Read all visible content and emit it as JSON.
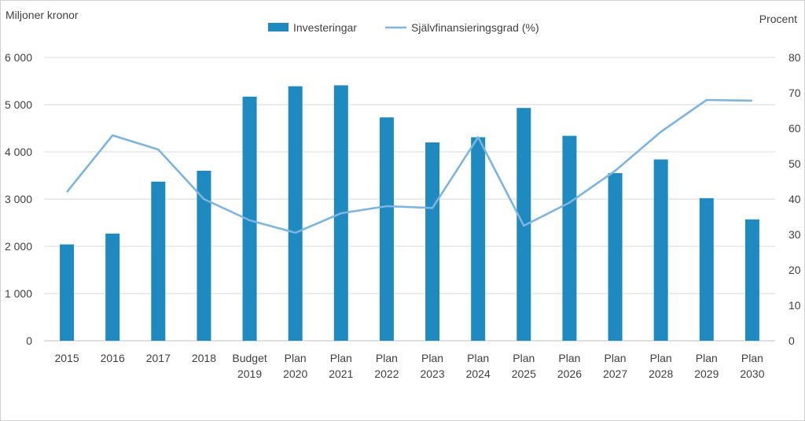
{
  "chart_data": {
    "type": "bar",
    "left_axis_title": "Miljoner kronor",
    "right_axis_title": "Procent",
    "categories": [
      [
        "2015"
      ],
      [
        "2016"
      ],
      [
        "2017"
      ],
      [
        "2018"
      ],
      [
        "Budget",
        "2019"
      ],
      [
        "Plan",
        "2020"
      ],
      [
        "Plan",
        "2021"
      ],
      [
        "Plan",
        "2022"
      ],
      [
        "Plan",
        "2023"
      ],
      [
        "Plan",
        "2024"
      ],
      [
        "Plan",
        "2025"
      ],
      [
        "Plan",
        "2026"
      ],
      [
        "Plan",
        "2027"
      ],
      [
        "Plan",
        "2028"
      ],
      [
        "Plan",
        "2029"
      ],
      [
        "Plan",
        "2030"
      ]
    ],
    "series": [
      {
        "name": "Investeringar",
        "type": "bar",
        "axis": "left",
        "color": "#1f8ac0",
        "values": [
          2040,
          2270,
          3370,
          3600,
          5170,
          5390,
          5410,
          4730,
          4200,
          4310,
          4930,
          4340,
          3550,
          3840,
          3020,
          2570
        ]
      },
      {
        "name": "Självfinansieringsgrad (%)",
        "type": "line",
        "axis": "right",
        "color": "#7db4e0",
        "values": [
          42,
          58,
          54,
          40,
          34,
          30.5,
          36,
          38,
          37.5,
          57.5,
          32.5,
          39,
          48,
          59,
          68,
          67.8
        ]
      }
    ],
    "left_axis": {
      "min": 0,
      "max": 6000,
      "ticks": [
        0,
        1000,
        2000,
        3000,
        4000,
        5000,
        6000
      ],
      "tick_labels": [
        "0",
        "1 000",
        "2 000",
        "3 000",
        "4 000",
        "5 000",
        "6 000"
      ]
    },
    "right_axis": {
      "min": 0,
      "max": 80,
      "ticks": [
        0,
        10,
        20,
        30,
        40,
        50,
        60,
        70,
        80
      ],
      "tick_labels": [
        "0",
        "10",
        "20",
        "30",
        "40",
        "50",
        "60",
        "70",
        "80"
      ]
    },
    "grid": true,
    "legend_position": "top-center"
  }
}
